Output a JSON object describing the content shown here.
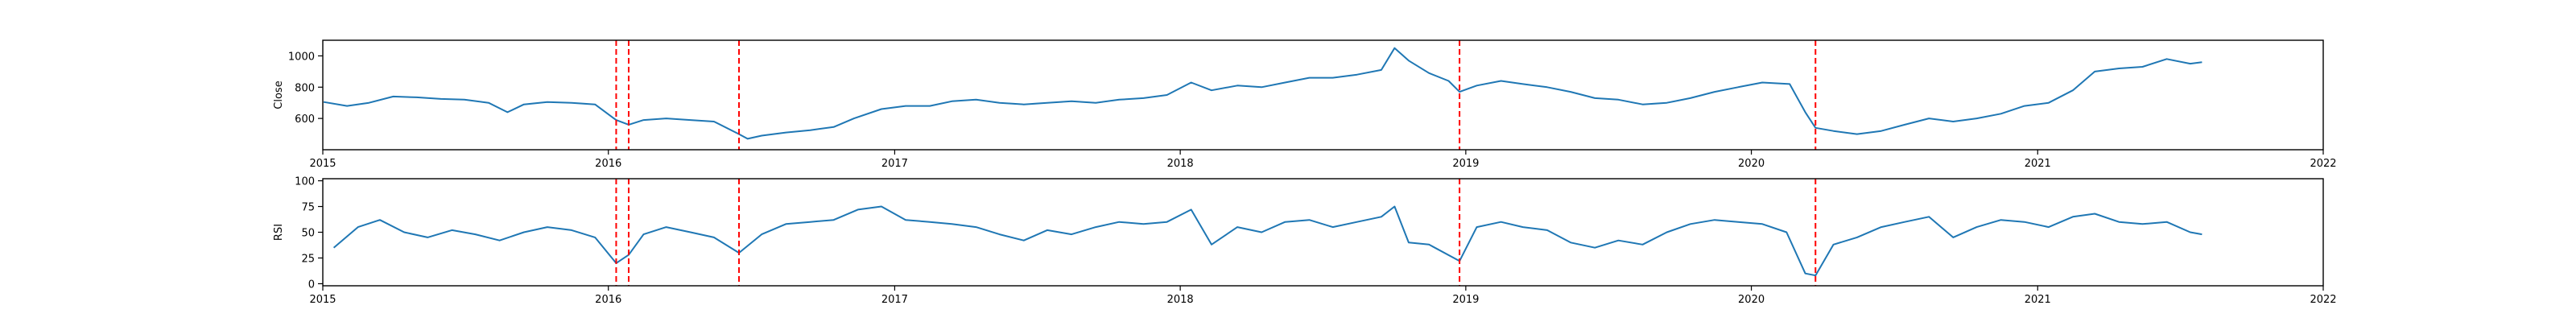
{
  "chart_data": [
    {
      "type": "line",
      "ylabel": "Close",
      "xlim": [
        "2015-01-01",
        "2022-01-01"
      ],
      "ylim": [
        400,
        1100
      ],
      "x_tick_labels": [
        "2015",
        "2016",
        "2017",
        "2018",
        "2019",
        "2020",
        "2021",
        "2022"
      ],
      "y_ticks": [
        600,
        800,
        1000
      ],
      "y_tick_labels": [
        "600",
        "800",
        "1000"
      ],
      "line_color": "#1f77b4",
      "marker_color": "#ff0000",
      "markers_style": "dashed vertical lines",
      "markers": [
        "2016-01-11",
        "2016-01-27",
        "2016-06-16",
        "2018-12-24",
        "2020-03-23"
      ],
      "series": [
        {
          "values": [
            [
              "2015-01-02",
              705
            ],
            [
              "2015-02-01",
              680
            ],
            [
              "2015-03-01",
              700
            ],
            [
              "2015-04-01",
              740
            ],
            [
              "2015-05-01",
              735
            ],
            [
              "2015-06-01",
              725
            ],
            [
              "2015-07-01",
              720
            ],
            [
              "2015-08-01",
              700
            ],
            [
              "2015-08-25",
              640
            ],
            [
              "2015-09-15",
              690
            ],
            [
              "2015-10-15",
              705
            ],
            [
              "2015-11-15",
              700
            ],
            [
              "2015-12-15",
              690
            ],
            [
              "2016-01-11",
              590
            ],
            [
              "2016-01-27",
              560
            ],
            [
              "2016-02-15",
              590
            ],
            [
              "2016-03-15",
              600
            ],
            [
              "2016-04-15",
              590
            ],
            [
              "2016-05-15",
              580
            ],
            [
              "2016-06-16",
              500
            ],
            [
              "2016-06-27",
              470
            ],
            [
              "2016-07-15",
              490
            ],
            [
              "2016-08-15",
              510
            ],
            [
              "2016-09-15",
              525
            ],
            [
              "2016-10-15",
              545
            ],
            [
              "2016-11-10",
              600
            ],
            [
              "2016-12-15",
              660
            ],
            [
              "2017-01-15",
              680
            ],
            [
              "2017-02-15",
              680
            ],
            [
              "2017-03-15",
              710
            ],
            [
              "2017-04-15",
              720
            ],
            [
              "2017-05-15",
              700
            ],
            [
              "2017-06-15",
              690
            ],
            [
              "2017-07-15",
              700
            ],
            [
              "2017-08-15",
              710
            ],
            [
              "2017-09-15",
              700
            ],
            [
              "2017-10-15",
              720
            ],
            [
              "2017-11-15",
              730
            ],
            [
              "2017-12-15",
              750
            ],
            [
              "2018-01-15",
              830
            ],
            [
              "2018-02-10",
              780
            ],
            [
              "2018-03-15",
              810
            ],
            [
              "2018-04-15",
              800
            ],
            [
              "2018-05-15",
              830
            ],
            [
              "2018-06-15",
              860
            ],
            [
              "2018-07-15",
              860
            ],
            [
              "2018-08-15",
              880
            ],
            [
              "2018-09-15",
              910
            ],
            [
              "2018-10-02",
              1050
            ],
            [
              "2018-10-20",
              970
            ],
            [
              "2018-11-15",
              890
            ],
            [
              "2018-12-10",
              840
            ],
            [
              "2018-12-24",
              770
            ],
            [
              "2019-01-15",
              810
            ],
            [
              "2019-02-15",
              840
            ],
            [
              "2019-03-15",
              820
            ],
            [
              "2019-04-15",
              800
            ],
            [
              "2019-05-15",
              770
            ],
            [
              "2019-06-15",
              730
            ],
            [
              "2019-07-15",
              720
            ],
            [
              "2019-08-15",
              690
            ],
            [
              "2019-09-15",
              700
            ],
            [
              "2019-10-15",
              730
            ],
            [
              "2019-11-15",
              770
            ],
            [
              "2019-12-15",
              800
            ],
            [
              "2020-01-15",
              830
            ],
            [
              "2020-02-19",
              820
            ],
            [
              "2020-03-10",
              640
            ],
            [
              "2020-03-23",
              540
            ],
            [
              "2020-04-15",
              520
            ],
            [
              "2020-05-15",
              500
            ],
            [
              "2020-06-15",
              520
            ],
            [
              "2020-07-15",
              560
            ],
            [
              "2020-08-15",
              600
            ],
            [
              "2020-09-15",
              580
            ],
            [
              "2020-10-15",
              600
            ],
            [
              "2020-11-15",
              630
            ],
            [
              "2020-12-15",
              680
            ],
            [
              "2021-01-15",
              700
            ],
            [
              "2021-02-15",
              780
            ],
            [
              "2021-03-15",
              900
            ],
            [
              "2021-04-15",
              920
            ],
            [
              "2021-05-15",
              930
            ],
            [
              "2021-06-15",
              980
            ],
            [
              "2021-07-15",
              950
            ],
            [
              "2021-07-30",
              960
            ]
          ]
        }
      ]
    },
    {
      "type": "line",
      "ylabel": "RSI",
      "xlim": [
        "2015-01-01",
        "2022-01-01"
      ],
      "ylim": [
        -2,
        102
      ],
      "x_tick_labels": [
        "2015",
        "2016",
        "2017",
        "2018",
        "2019",
        "2020",
        "2021",
        "2022"
      ],
      "y_ticks": [
        0,
        25,
        50,
        75,
        100
      ],
      "y_tick_labels": [
        "0",
        "25",
        "50",
        "75",
        "100"
      ],
      "line_color": "#1f77b4",
      "marker_color": "#ff0000",
      "markers_style": "dashed vertical lines",
      "markers": [
        "2016-01-11",
        "2016-01-27",
        "2016-06-16",
        "2018-12-24",
        "2020-03-23"
      ],
      "series": [
        {
          "values": [
            [
              "2015-01-15",
              35
            ],
            [
              "2015-02-15",
              55
            ],
            [
              "2015-03-15",
              62
            ],
            [
              "2015-04-15",
              50
            ],
            [
              "2015-05-15",
              45
            ],
            [
              "2015-06-15",
              52
            ],
            [
              "2015-07-15",
              48
            ],
            [
              "2015-08-15",
              42
            ],
            [
              "2015-09-15",
              50
            ],
            [
              "2015-10-15",
              55
            ],
            [
              "2015-11-15",
              52
            ],
            [
              "2015-12-15",
              45
            ],
            [
              "2016-01-11",
              20
            ],
            [
              "2016-01-27",
              28
            ],
            [
              "2016-02-15",
              48
            ],
            [
              "2016-03-15",
              55
            ],
            [
              "2016-04-15",
              50
            ],
            [
              "2016-05-15",
              45
            ],
            [
              "2016-06-16",
              30
            ],
            [
              "2016-07-15",
              48
            ],
            [
              "2016-08-15",
              58
            ],
            [
              "2016-09-15",
              60
            ],
            [
              "2016-10-15",
              62
            ],
            [
              "2016-11-15",
              72
            ],
            [
              "2016-12-15",
              75
            ],
            [
              "2017-01-15",
              62
            ],
            [
              "2017-02-15",
              60
            ],
            [
              "2017-03-15",
              58
            ],
            [
              "2017-04-15",
              55
            ],
            [
              "2017-05-15",
              48
            ],
            [
              "2017-06-15",
              42
            ],
            [
              "2017-07-15",
              52
            ],
            [
              "2017-08-15",
              48
            ],
            [
              "2017-09-15",
              55
            ],
            [
              "2017-10-15",
              60
            ],
            [
              "2017-11-15",
              58
            ],
            [
              "2017-12-15",
              60
            ],
            [
              "2018-01-15",
              72
            ],
            [
              "2018-02-10",
              38
            ],
            [
              "2018-03-15",
              55
            ],
            [
              "2018-04-15",
              50
            ],
            [
              "2018-05-15",
              60
            ],
            [
              "2018-06-15",
              62
            ],
            [
              "2018-07-15",
              55
            ],
            [
              "2018-08-15",
              60
            ],
            [
              "2018-09-15",
              65
            ],
            [
              "2018-10-02",
              75
            ],
            [
              "2018-10-20",
              40
            ],
            [
              "2018-11-15",
              38
            ],
            [
              "2018-12-24",
              22
            ],
            [
              "2019-01-15",
              55
            ],
            [
              "2019-02-15",
              60
            ],
            [
              "2019-03-15",
              55
            ],
            [
              "2019-04-15",
              52
            ],
            [
              "2019-05-15",
              40
            ],
            [
              "2019-06-15",
              35
            ],
            [
              "2019-07-15",
              42
            ],
            [
              "2019-08-15",
              38
            ],
            [
              "2019-09-15",
              50
            ],
            [
              "2019-10-15",
              58
            ],
            [
              "2019-11-15",
              62
            ],
            [
              "2019-12-15",
              60
            ],
            [
              "2020-01-15",
              58
            ],
            [
              "2020-02-15",
              50
            ],
            [
              "2020-03-10",
              10
            ],
            [
              "2020-03-23",
              8
            ],
            [
              "2020-04-15",
              38
            ],
            [
              "2020-05-15",
              45
            ],
            [
              "2020-06-15",
              55
            ],
            [
              "2020-07-15",
              60
            ],
            [
              "2020-08-15",
              65
            ],
            [
              "2020-09-15",
              45
            ],
            [
              "2020-10-15",
              55
            ],
            [
              "2020-11-15",
              62
            ],
            [
              "2020-12-15",
              60
            ],
            [
              "2021-01-15",
              55
            ],
            [
              "2021-02-15",
              65
            ],
            [
              "2021-03-15",
              68
            ],
            [
              "2021-04-15",
              60
            ],
            [
              "2021-05-15",
              58
            ],
            [
              "2021-06-15",
              60
            ],
            [
              "2021-07-15",
              50
            ],
            [
              "2021-07-30",
              48
            ]
          ]
        }
      ]
    }
  ]
}
